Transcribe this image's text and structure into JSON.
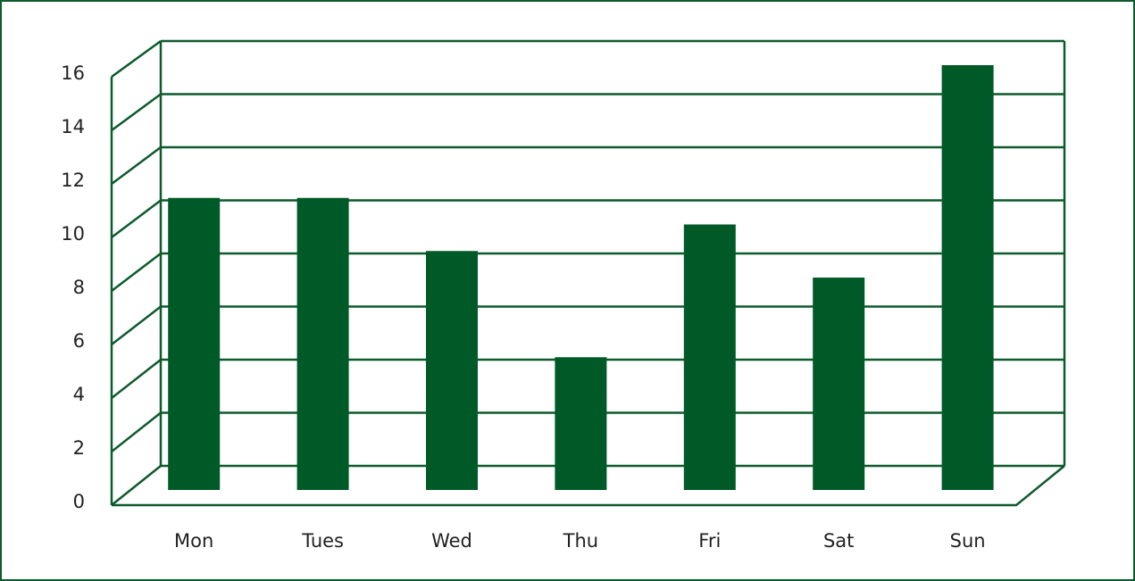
{
  "chart_data": {
    "type": "bar",
    "categories": [
      "Mon",
      "Tues",
      "Wed",
      "Thu",
      "Fri",
      "Sat",
      "Sun"
    ],
    "values": [
      11,
      11,
      9,
      5,
      10,
      8,
      16
    ],
    "color": "#005a27",
    "ylim": [
      0,
      16
    ],
    "yticks": [
      0,
      2,
      4,
      6,
      8,
      10,
      12,
      14,
      16
    ],
    "grid": true
  }
}
